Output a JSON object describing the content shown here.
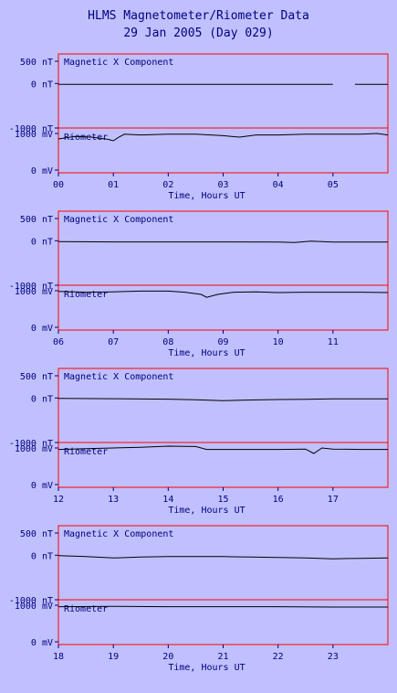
{
  "title_line1": "HLMS Magnetometer/Riometer Data",
  "title_line2": "29 Jan 2005 (Day 029)",
  "colors": {
    "background": "#c0c0ff",
    "frame": "#ff0000",
    "text": "#00007f",
    "trace": "#000000"
  },
  "chart_data": [
    {
      "type": "line",
      "xlabel": "Time, Hours UT",
      "xticks": [
        "00",
        "01",
        "02",
        "03",
        "04",
        "05"
      ],
      "xlim": [
        0,
        6
      ],
      "panels": [
        {
          "label": "Magnetic X Component",
          "unit": "nT",
          "yticks": [
            "500 nT",
            "0 nT",
            "-1000 nT"
          ],
          "ylim": [
            -1000,
            500
          ],
          "series": [
            {
              "x": [
                0,
                1,
                2,
                3,
                4,
                4.9,
                5,
                5.2,
                5.4,
                6
              ],
              "y": [
                -20,
                -20,
                -20,
                -18,
                -18,
                -18,
                -18,
                null,
                -18,
                -18
              ]
            }
          ]
        },
        {
          "label": "Riometer",
          "unit": "mV",
          "yticks": [
            "1000 mV",
            "0 mV"
          ],
          "ylim": [
            0,
            1200
          ],
          "series": [
            {
              "x": [
                0,
                0.3,
                0.6,
                0.9,
                1.0,
                1.1,
                1.2,
                1.5,
                2,
                2.5,
                3,
                3.3,
                3.6,
                4,
                4.5,
                5,
                5.5,
                5.8,
                6
              ],
              "y": [
                850,
                920,
                900,
                840,
                800,
                900,
                980,
                960,
                980,
                980,
                940,
                900,
                960,
                960,
                980,
                980,
                980,
                1000,
                960
              ]
            }
          ]
        }
      ]
    },
    {
      "type": "line",
      "xlabel": "Time, Hours UT",
      "xticks": [
        "06",
        "07",
        "08",
        "09",
        "10",
        "11"
      ],
      "xlim": [
        6,
        12
      ],
      "panels": [
        {
          "label": "Magnetic X Component",
          "unit": "nT",
          "yticks": [
            "500 nT",
            "0 nT",
            "-1000 nT"
          ],
          "ylim": [
            -1000,
            500
          ],
          "series": [
            {
              "x": [
                6,
                7,
                8,
                9,
                10,
                10.3,
                10.6,
                11,
                11.5,
                12
              ],
              "y": [
                -20,
                -25,
                -25,
                -25,
                -30,
                -40,
                -10,
                -30,
                -30,
                -30
              ]
            }
          ]
        },
        {
          "label": "Riometer",
          "unit": "mV",
          "yticks": [
            "1000 mV",
            "0 mV"
          ],
          "ylim": [
            0,
            1200
          ],
          "series": [
            {
              "x": [
                6,
                6.5,
                7,
                7.5,
                8,
                8.3,
                8.6,
                8.7,
                8.9,
                9.2,
                9.6,
                10,
                10.5,
                11,
                11.5,
                12
              ],
              "y": [
                980,
                960,
                970,
                990,
                990,
                960,
                900,
                820,
                900,
                960,
                970,
                950,
                960,
                960,
                960,
                950
              ]
            }
          ]
        }
      ]
    },
    {
      "type": "line",
      "xlabel": "Time, Hours UT",
      "xticks": [
        "12",
        "13",
        "14",
        "15",
        "16",
        "17"
      ],
      "xlim": [
        12,
        18
      ],
      "panels": [
        {
          "label": "Magnetic X Component",
          "unit": "nT",
          "yticks": [
            "500 nT",
            "0 nT",
            "-1000 nT"
          ],
          "ylim": [
            -1000,
            500
          ],
          "series": [
            {
              "x": [
                12,
                13,
                14,
                14.5,
                15,
                15.5,
                16,
                16.5,
                17,
                17.5,
                18
              ],
              "y": [
                -10,
                -15,
                -25,
                -40,
                -60,
                -45,
                -35,
                -30,
                -20,
                -20,
                -20
              ]
            }
          ]
        },
        {
          "label": "Riometer",
          "unit": "mV",
          "yticks": [
            "1000 mV",
            "0 mV"
          ],
          "ylim": [
            0,
            1200
          ],
          "series": [
            {
              "x": [
                12,
                12.5,
                13,
                13.5,
                14,
                14.5,
                14.7,
                15,
                15.5,
                16,
                16.5,
                16.65,
                16.8,
                17,
                17.5,
                18
              ],
              "y": [
                960,
                980,
                1000,
                1020,
                1050,
                1040,
                960,
                960,
                960,
                960,
                970,
                850,
                1000,
                970,
                960,
                960
              ]
            }
          ]
        }
      ]
    },
    {
      "type": "line",
      "xlabel": "Time, Hours UT",
      "xticks": [
        "18",
        "19",
        "20",
        "21",
        "22",
        "23"
      ],
      "xlim": [
        18,
        24
      ],
      "panels": [
        {
          "label": "Magnetic X Component",
          "unit": "nT",
          "yticks": [
            "500 nT",
            "0 nT",
            "-1000 nT"
          ],
          "ylim": [
            -1000,
            500
          ],
          "series": [
            {
              "x": [
                18,
                18.5,
                19,
                19.5,
                20,
                20.5,
                21,
                21.5,
                22,
                22.5,
                23,
                23.5,
                24
              ],
              "y": [
                -10,
                -30,
                -60,
                -40,
                -30,
                -30,
                -30,
                -40,
                -50,
                -60,
                -80,
                -70,
                -60
              ]
            }
          ]
        },
        {
          "label": "Riometer",
          "unit": "mV",
          "yticks": [
            "1000 mV",
            "0 mV"
          ],
          "ylim": [
            0,
            1200
          ],
          "series": [
            {
              "x": [
                18,
                19,
                20,
                21,
                22,
                23,
                24
              ],
              "y": [
                960,
                970,
                960,
                960,
                960,
                950,
                950
              ]
            }
          ]
        }
      ]
    }
  ]
}
